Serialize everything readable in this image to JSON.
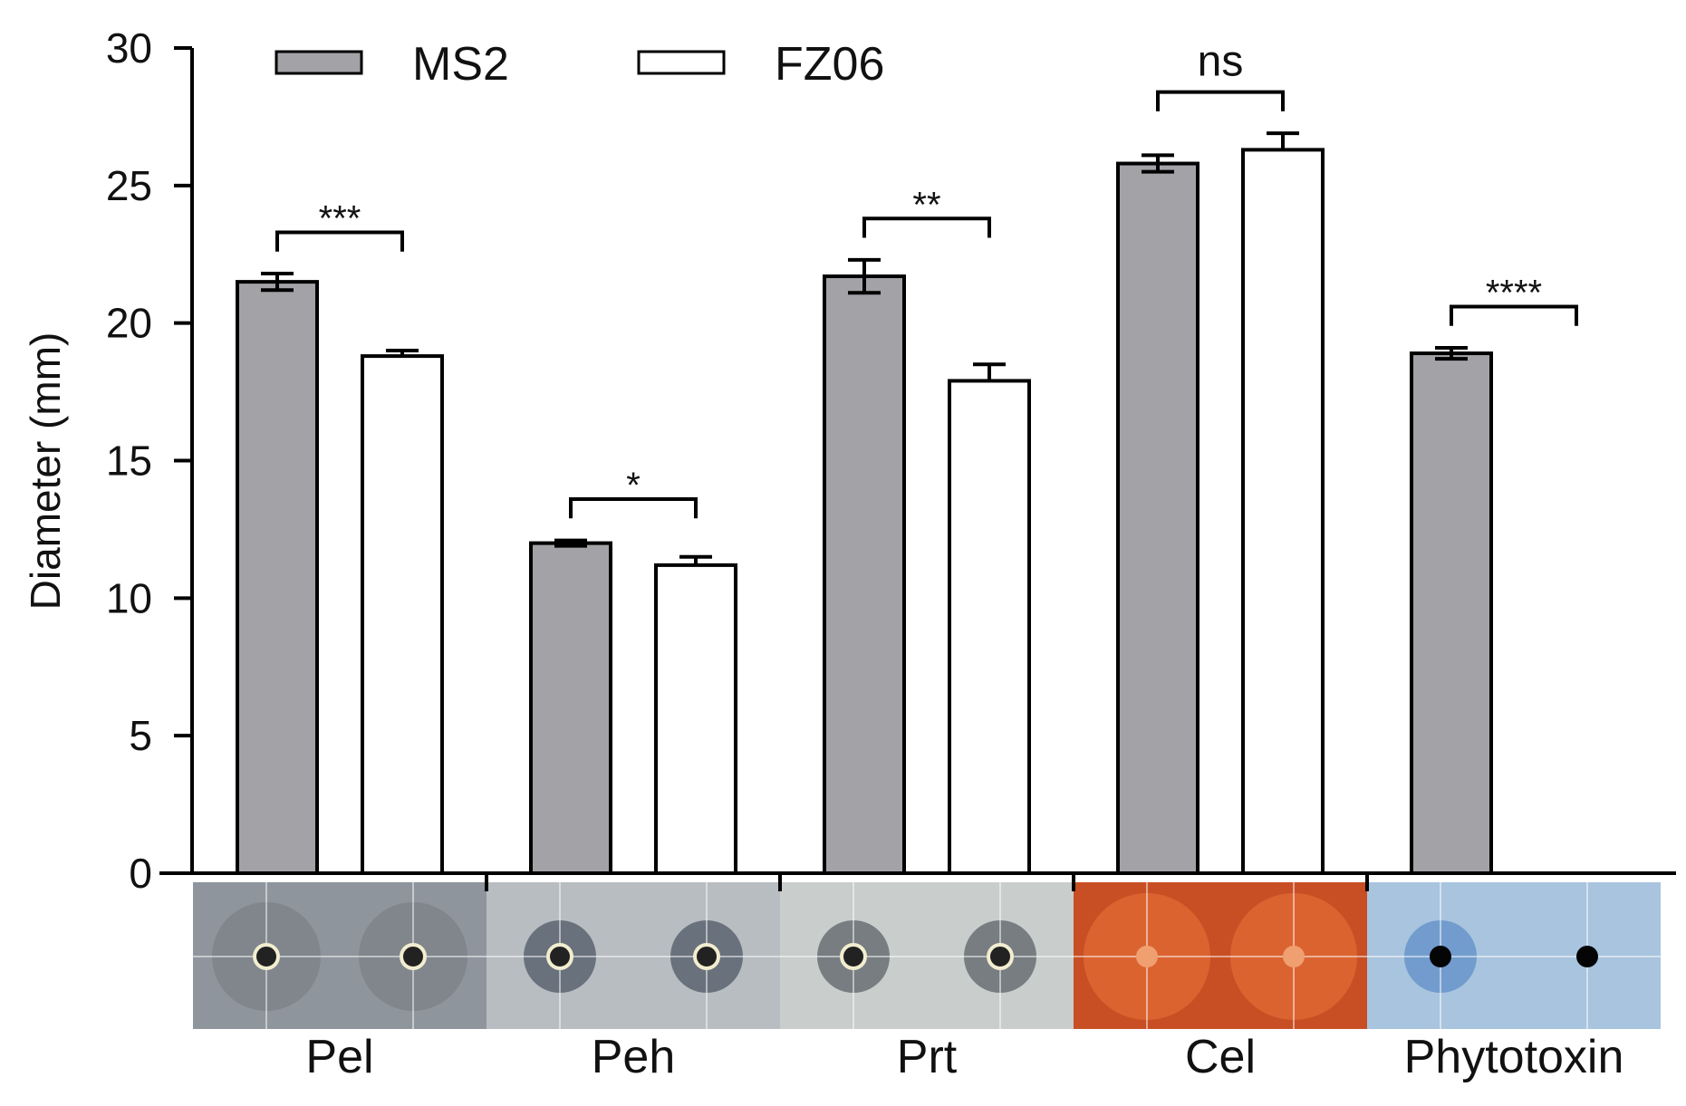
{
  "chart_data": {
    "type": "bar",
    "title": "",
    "xlabel": "",
    "ylabel": "Diameter (mm)",
    "ylim": [
      0,
      30
    ],
    "yticks": [
      0,
      5,
      10,
      15,
      20,
      25,
      30
    ],
    "categories": [
      "Pel",
      "Peh",
      "Prt",
      "Cel",
      "Phytotoxin"
    ],
    "series": [
      {
        "name": "MS2",
        "color": "#a3a3a7",
        "values": [
          21.5,
          12.0,
          21.7,
          25.8,
          18.9
        ],
        "errors": [
          0.3,
          0.1,
          0.6,
          0.3,
          0.2
        ]
      },
      {
        "name": "FZ06",
        "color": "#ffffff",
        "values": [
          18.8,
          11.2,
          17.9,
          26.3,
          0
        ],
        "errors": [
          0.2,
          0.3,
          0.6,
          0.6,
          0
        ]
      }
    ],
    "significance": [
      "***",
      "*",
      "**",
      "ns",
      "****"
    ],
    "legend_position": "top-left",
    "grid": false,
    "plate_images": [
      {
        "category": "Pel",
        "strains": [
          "MS2",
          "FZ06"
        ],
        "background": "#8f959c",
        "halo": "#7b8187"
      },
      {
        "category": "Peh",
        "strains": [
          "MS2",
          "FZ06"
        ],
        "background": "#b8bdc1",
        "halo": "#4f5864"
      },
      {
        "category": "Prt",
        "strains": [
          "MS2",
          "FZ06"
        ],
        "background": "#c9cdcb",
        "halo": "#5b6268"
      },
      {
        "category": "Cel",
        "strains": [
          "MS2",
          "FZ06"
        ],
        "background": "#c84f23",
        "halo": "#e26a35"
      },
      {
        "category": "Phytotoxin",
        "strains": [
          "MS2",
          "FZ06"
        ],
        "background": "#a9c4de",
        "halo": "#5f8fc7"
      }
    ]
  }
}
